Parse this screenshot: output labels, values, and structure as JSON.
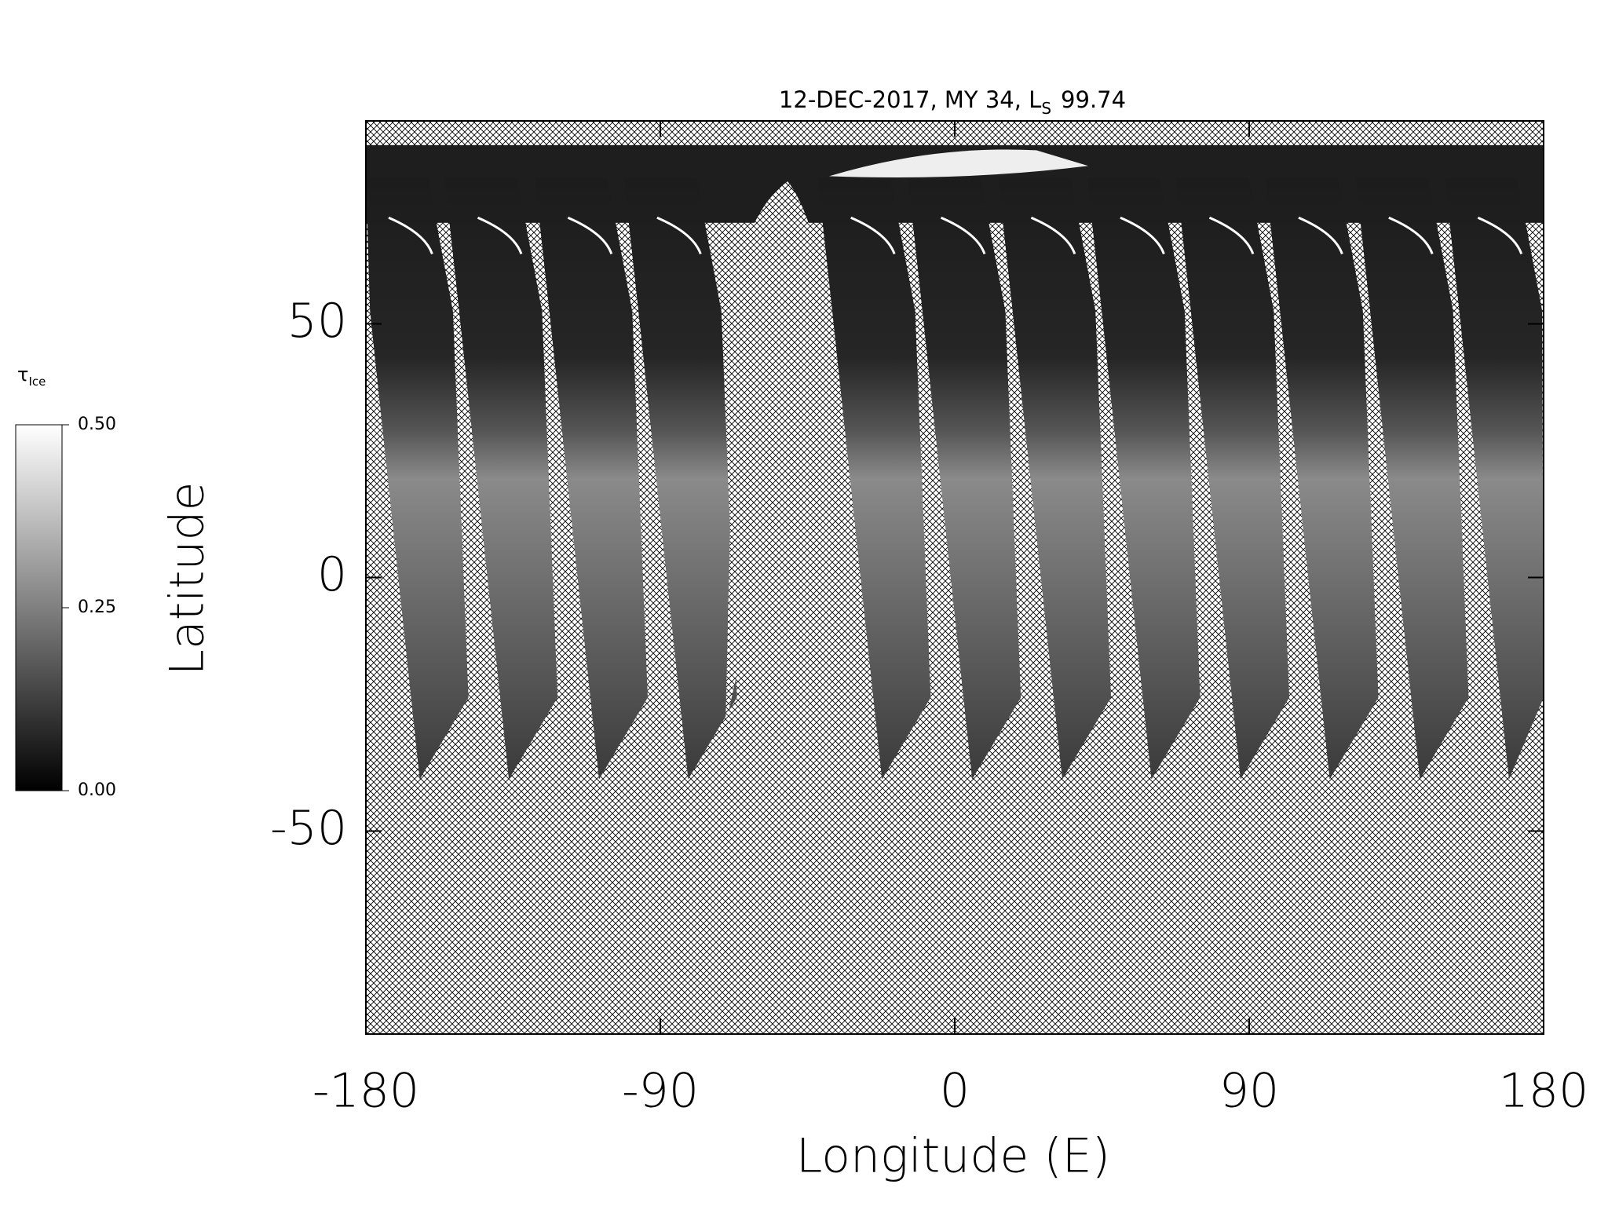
{
  "chart_data": {
    "type": "image",
    "title": {
      "main": "12-DEC-2017, MY 34,  L",
      "sub": "S",
      "end": "99.74"
    },
    "x_label": "Longitude (E)",
    "y_label": "Latitude",
    "xlim": [
      -180,
      180
    ],
    "xticks": [
      -180,
      -90,
      0,
      90,
      180
    ],
    "ylim": [
      -90,
      90
    ],
    "yticks": [
      -50,
      0,
      50
    ],
    "grid": false,
    "colorbar": {
      "label": "τ",
      "label_sub": "Ice",
      "lim": [
        0,
        0.5
      ],
      "ticks": [
        {
          "value": 0,
          "label": "0.00"
        },
        {
          "value": 0.25,
          "label": "0.25"
        },
        {
          "value": 0.5,
          "label": "0.50"
        }
      ],
      "colors": [
        "#000000",
        "#ffffff"
      ]
    }
  }
}
